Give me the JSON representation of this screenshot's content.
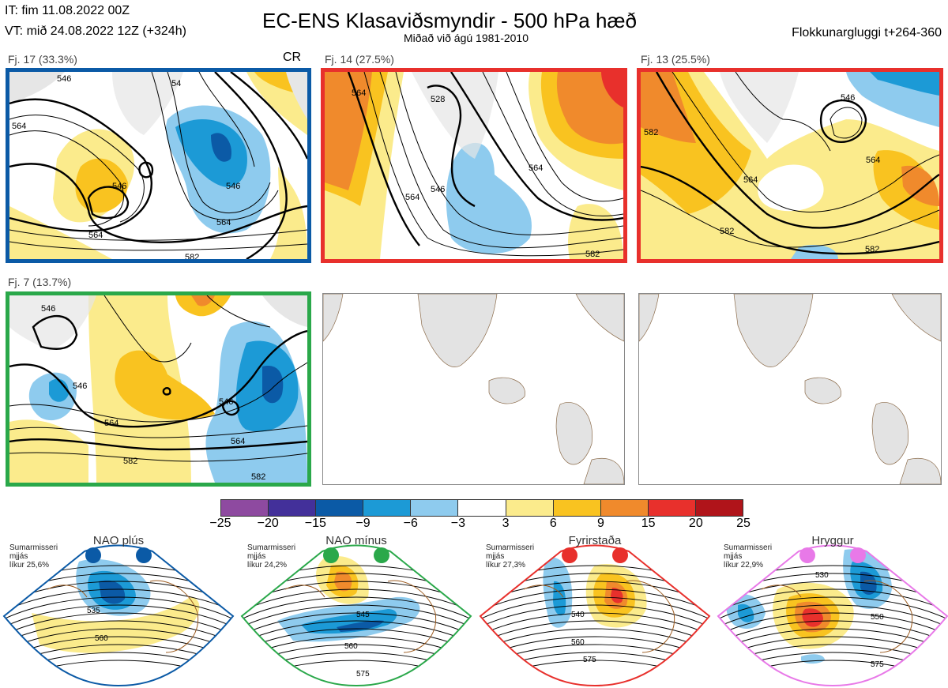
{
  "header": {
    "it_line": "IT: fim 11.08.2022 00Z",
    "vt_line": "VT: mið 24.08.2022 12Z  (+324h)",
    "title": "EC-ENS Klasaviðsmyndir - 500 hPa hæð",
    "subtitle": "Miðað við ágú 1981-2010",
    "window": "Flokkunargluggi t+264-360"
  },
  "clusters": [
    {
      "label": "Fj. 17 (33.3%)",
      "tag": "CR",
      "border_color": "#0b5aa6"
    },
    {
      "label": "Fj. 14 (27.5%)",
      "tag": "",
      "border_color": "#e8302c"
    },
    {
      "label": "Fj. 13 (25.5%)",
      "tag": "",
      "border_color": "#e8302c"
    },
    {
      "label": "Fj. 7 (13.7%)",
      "tag": "",
      "border_color": "#2aa84a"
    }
  ],
  "contour_labels": {
    "p1": [
      "546",
      "54",
      "564",
      "546",
      "546",
      "564",
      "564",
      "582"
    ],
    "p2": [
      "564",
      "528",
      "546",
      "564",
      "564",
      "582"
    ],
    "p3": [
      "546",
      "582",
      "564",
      "564",
      "582",
      "582"
    ],
    "p4": [
      "546",
      "546",
      "564",
      "564",
      "582",
      "582",
      "546"
    ]
  },
  "colorbar": {
    "colors": [
      "#8e4aa0",
      "#43309a",
      "#0b5aa6",
      "#1c9ad6",
      "#8ecbee",
      "#ffffff",
      "#fbeb8c",
      "#f9c320",
      "#f08a2c",
      "#e8302c",
      "#b0141a"
    ],
    "ticks": [
      "−25",
      "−20",
      "−15",
      "−9",
      "−6",
      "−3",
      "3",
      "6",
      "9",
      "15",
      "20",
      "25"
    ]
  },
  "regimes": [
    {
      "title": "NAO plús",
      "note_1": "Sumarmisseri",
      "note_2": "mjjás",
      "note_3": "líkur 25,6%",
      "color": "#0b5aa6",
      "labels": [
        "535",
        "560"
      ]
    },
    {
      "title": "NAO mínus",
      "note_1": "Sumarmisseri",
      "note_2": "mjjás",
      "note_3": "líkur 24,2%",
      "color": "#2aa84a",
      "labels": [
        "545",
        "560",
        "575"
      ]
    },
    {
      "title": "Fyrirstaða",
      "note_1": "Sumarmisseri",
      "note_2": "mjjás",
      "note_3": "líkur 27,3%",
      "color": "#e8302c",
      "labels": [
        "540",
        "560",
        "575"
      ]
    },
    {
      "title": "Hryggur",
      "note_1": "Sumarmisseri",
      "note_2": "mjjás",
      "note_3": "líkur 22,9%",
      "color": "#e879e8",
      "labels": [
        "530",
        "550",
        "575"
      ]
    }
  ]
}
